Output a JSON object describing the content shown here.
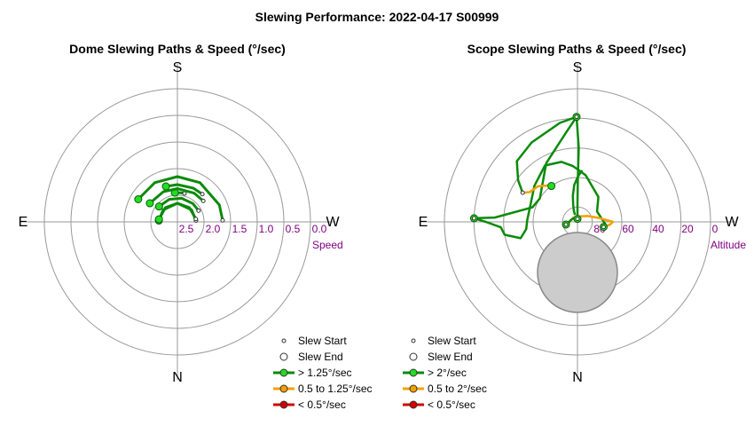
{
  "title": "Slewing Performance: 2022-04-17 S00999",
  "colors": {
    "fast": "#0a8a0a",
    "fast_marker": "#22dd22",
    "medium": "#f5a000",
    "medium_marker": "#f5a000",
    "slow": "#d40000",
    "slow_marker": "#d40000",
    "grid": "#999999",
    "tick": "#800080",
    "obstruction": "#cccccc"
  },
  "chart_data": [
    {
      "type": "polar-paths",
      "title": "Dome Slewing Paths & Speed (°/sec)",
      "compass": {
        "top": "S",
        "bottom": "N",
        "left": "E",
        "right": "W"
      },
      "radial_axis": {
        "label": "Speed",
        "ticks": [
          "2.5",
          "2.0",
          "1.5",
          "1.0",
          "0.5",
          "0.0"
        ],
        "range": [
          3.0,
          0.0
        ],
        "direction": "outward-decreasing"
      },
      "legend": [
        {
          "label": "Slew Start",
          "kind": "start"
        },
        {
          "label": "Slew End",
          "kind": "end"
        },
        {
          "label": "> 1.25°/sec",
          "kind": "fast"
        },
        {
          "label": "0.5 to 1.25°/sec",
          "kind": "medium"
        },
        {
          "label": "< 0.5°/sec",
          "kind": "slow"
        }
      ],
      "paths": [
        {
          "speed": 1.9,
          "az_deg": [
            -5,
            0,
            8,
            14
          ],
          "class": "fast"
        },
        {
          "speed": 1.6,
          "az_deg": [
            -18,
            0,
            25,
            42
          ],
          "class": "fast"
        },
        {
          "speed": 1.3,
          "az_deg": [
            -60,
            -30,
            0,
            30,
            68,
            88
          ],
          "class": "fast"
        },
        {
          "speed": 1.75,
          "az_deg": [
            -56,
            -25,
            0,
            30,
            51
          ],
          "class": "fast"
        },
        {
          "speed": 2.1,
          "az_deg": [
            -50,
            -20,
            10,
            40,
            62
          ],
          "class": "fast"
        },
        {
          "speed": 2.3,
          "az_deg": [
            -86,
            -50,
            0,
            50,
            86
          ],
          "class": "fast"
        },
        {
          "speed": 2.3,
          "az_deg": [
            -82,
            -40,
            0,
            40,
            81
          ],
          "class": "fast"
        }
      ]
    },
    {
      "type": "polar-paths",
      "title": "Scope Slewing Paths & Speed (°/sec)",
      "compass": {
        "top": "S",
        "bottom": "N",
        "left": "E",
        "right": "W"
      },
      "radial_axis": {
        "label": "Altitude",
        "ticks": [
          "80",
          "60",
          "40",
          "20",
          "0"
        ],
        "range": [
          90,
          0
        ]
      },
      "obstruction": {
        "az_deg": 0,
        "alt_deg": 72,
        "radius_deg": 27
      },
      "legend": [
        {
          "label": "Slew Start",
          "kind": "start"
        },
        {
          "label": "Slew End",
          "kind": "end"
        },
        {
          "label": "> 2°/sec",
          "kind": "fast"
        },
        {
          "label": "0.5 to 2°/sec",
          "kind": "medium"
        },
        {
          "label": "< 0.5°/sec",
          "kind": "slow"
        }
      ],
      "paths": [
        {
          "class": "fast",
          "points": [
            [
              0.5,
              19
            ],
            [
              -1,
              40
            ],
            [
              -0.5,
              60
            ],
            [
              0,
              78
            ],
            [
              -0.5,
              88
            ]
          ]
        },
        {
          "class": "fast",
          "points": [
            [
              0.5,
              19
            ],
            [
              8,
              30
            ],
            [
              28,
              45
            ],
            [
              58,
              60
            ],
            [
              72,
              58
            ],
            [
              87,
              34
            ],
            [
              88,
              20
            ]
          ]
        },
        {
          "class": "fast",
          "points": [
            [
              88,
              20
            ],
            [
              90,
              28
            ],
            [
              94,
              38
            ],
            [
              100,
              40
            ],
            [
              106,
              50
            ],
            [
              98,
              55
            ],
            [
              88,
              56
            ],
            [
              68,
              56
            ],
            [
              50,
              52
            ],
            [
              30,
              46
            ],
            [
              15,
              48
            ],
            [
              5,
              52
            ],
            [
              -4,
              56
            ],
            [
              -10,
              58
            ],
            [
              -40,
              68
            ],
            [
              -62,
              75
            ],
            [
              -95,
              71
            ],
            [
              -101,
              72
            ]
          ]
        },
        {
          "class": "fast",
          "points": [
            [
              0.5,
              19
            ],
            [
              10,
              22
            ],
            [
              30,
              28
            ],
            [
              45,
              32
            ],
            [
              55,
              41
            ],
            [
              62,
              48
            ]
          ]
        },
        {
          "class": "fast",
          "points": [
            [
              -5,
              55
            ],
            [
              0,
              60
            ],
            [
              5,
              65
            ],
            [
              10,
              72
            ],
            [
              14,
              78
            ],
            [
              18,
              82
            ],
            [
              20,
              85
            ]
          ]
        },
        {
          "class": "medium",
          "points": [
            [
              62,
              48
            ],
            [
              58,
              52
            ],
            [
              48,
              54
            ],
            [
              40,
              58
            ],
            [
              36,
              60
            ]
          ]
        },
        {
          "class": "medium",
          "points": [
            [
              -101,
              72
            ],
            [
              -95,
              68
            ],
            [
              -90,
              66
            ],
            [
              -80,
              75
            ],
            [
              -60,
              82
            ],
            [
              -20,
              86
            ],
            [
              0,
              88
            ]
          ]
        },
        {
          "class": "medium",
          "points": [
            [
              0,
              88
            ],
            [
              40,
              86
            ],
            [
              80,
              85
            ],
            [
              100,
              84
            ],
            [
              103,
              82
            ]
          ]
        },
        {
          "class": "fast",
          "points": [
            [
              103,
              82
            ],
            [
              60,
              86
            ],
            [
              20,
              87
            ],
            [
              0,
              88
            ]
          ]
        }
      ],
      "starts": [
        [
          88,
          20
        ],
        [
          62,
          48
        ],
        [
          -101,
          72
        ],
        [
          103,
          82
        ],
        [
          0.5,
          19
        ],
        [
          0,
          88
        ]
      ],
      "ends": [
        [
          0.5,
          19
        ],
        [
          88,
          20
        ],
        [
          36,
          60
        ],
        [
          -101,
          72
        ],
        [
          0,
          88
        ],
        [
          103,
          82
        ]
      ]
    }
  ]
}
